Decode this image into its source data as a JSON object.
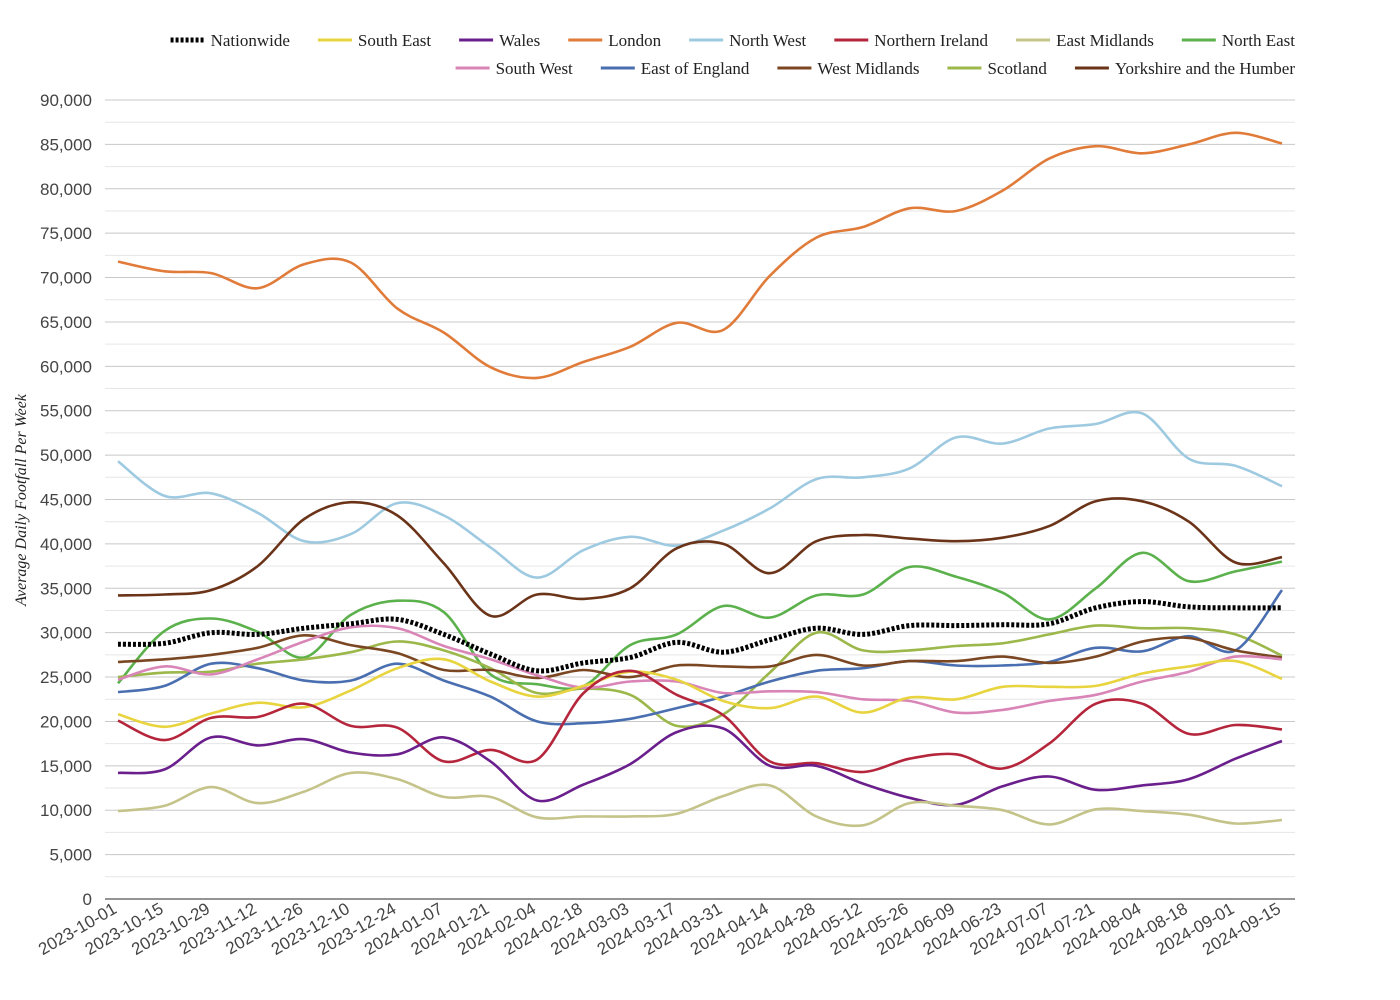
{
  "chart_data": {
    "type": "line",
    "ylabel": "Average Daily Footfall Per Week",
    "xlabel": "",
    "ylim": [
      0,
      90000
    ],
    "y_ticks": [
      0,
      5000,
      10000,
      15000,
      20000,
      25000,
      30000,
      35000,
      40000,
      45000,
      50000,
      55000,
      60000,
      65000,
      70000,
      75000,
      80000,
      85000,
      90000
    ],
    "y_tick_labels": [
      "0",
      "5,000",
      "10,000",
      "15,000",
      "20,000",
      "25,000",
      "30,000",
      "35,000",
      "40,000",
      "45,000",
      "50,000",
      "55,000",
      "60,000",
      "65,000",
      "70,000",
      "75,000",
      "80,000",
      "85,000",
      "90,000"
    ],
    "x_tick_labels": [
      "2023-10-01",
      "2023-10-15",
      "2023-10-29",
      "2023-11-12",
      "2023-11-26",
      "2023-12-10",
      "2023-12-24",
      "2024-01-07",
      "2024-01-21",
      "2024-02-04",
      "2024-02-18",
      "2024-03-03",
      "2024-03-17",
      "2024-03-31",
      "2024-04-14",
      "2024-04-28",
      "2024-05-12",
      "2024-05-26",
      "2024-06-09",
      "2024-06-23",
      "2024-07-07",
      "2024-07-21",
      "2024-08-04",
      "2024-08-18",
      "2024-09-01",
      "2024-09-15"
    ],
    "grid": true,
    "legend_position": "top",
    "x": [
      "2023-10-01",
      "2023-10-15",
      "2023-10-29",
      "2023-11-12",
      "2023-11-26",
      "2023-12-10",
      "2023-12-24",
      "2024-01-07",
      "2024-01-21",
      "2024-02-04",
      "2024-02-18",
      "2024-03-03",
      "2024-03-17",
      "2024-03-31",
      "2024-04-14",
      "2024-04-28",
      "2024-05-12",
      "2024-05-26",
      "2024-06-09",
      "2024-06-23",
      "2024-07-07",
      "2024-07-21",
      "2024-08-04",
      "2024-08-18",
      "2024-09-01",
      "2024-09-15"
    ],
    "series": [
      {
        "name": "London",
        "color": "#e07b39",
        "dashed": false,
        "values": [
          71800,
          70700,
          70500,
          68800,
          71500,
          71700,
          66500,
          63800,
          59900,
          58700,
          60500,
          62200,
          64900,
          64100,
          70200,
          74500,
          75700,
          77800,
          77500,
          79800,
          83400,
          84800,
          84000,
          85000,
          86300,
          85100
        ]
      },
      {
        "name": "North West",
        "color": "#9ecae1",
        "dashed": false,
        "values": [
          49300,
          45400,
          45700,
          43500,
          40300,
          41100,
          44600,
          43200,
          39600,
          36200,
          39300,
          40800,
          39800,
          41500,
          44000,
          47300,
          47500,
          48500,
          52000,
          51300,
          53000,
          53500,
          54700,
          49600,
          48800,
          46500
        ]
      },
      {
        "name": "Yorkshire and the Humber",
        "color": "#6b3318",
        "dashed": false,
        "values": [
          34200,
          34300,
          34800,
          37500,
          42800,
          44700,
          43200,
          37800,
          31900,
          34300,
          33800,
          35000,
          39500,
          40000,
          36700,
          40300,
          41000,
          40600,
          40300,
          40700,
          42000,
          44800,
          44800,
          42500,
          37900,
          38500
        ]
      },
      {
        "name": "North East",
        "color": "#5bb14b",
        "dashed": false,
        "values": [
          24300,
          30200,
          31600,
          30100,
          27200,
          32000,
          33600,
          32300,
          25300,
          24200,
          24000,
          28600,
          29800,
          33000,
          31700,
          34200,
          34300,
          37400,
          36300,
          34500,
          31500,
          35000,
          39000,
          35800,
          36900,
          38000
        ]
      },
      {
        "name": "Nationwide",
        "color": "#000000",
        "dashed": true,
        "values": [
          28700,
          28800,
          30000,
          29800,
          30500,
          31000,
          31500,
          29800,
          27600,
          25700,
          26600,
          27200,
          28900,
          27800,
          29200,
          30500,
          29800,
          30800,
          30800,
          30900,
          31000,
          32800,
          33500,
          32900,
          32800,
          32800
        ]
      },
      {
        "name": "Scotland",
        "color": "#9cb74a",
        "dashed": false,
        "values": [
          25000,
          25500,
          25600,
          26500,
          27000,
          27800,
          29000,
          28000,
          26000,
          23200,
          23700,
          23000,
          19500,
          20800,
          25500,
          30000,
          28000,
          28000,
          28500,
          28800,
          29800,
          30800,
          30500,
          30500,
          29800,
          27400
        ]
      },
      {
        "name": "East of England",
        "color": "#4a6fb0",
        "dashed": false,
        "values": [
          23300,
          24000,
          26500,
          26000,
          24600,
          24600,
          26500,
          24600,
          22800,
          20000,
          19800,
          20300,
          21500,
          22800,
          24500,
          25700,
          26000,
          26800,
          26300,
          26300,
          26700,
          28300,
          27900,
          29600,
          28000,
          34800
        ]
      },
      {
        "name": "West Midlands",
        "color": "#7b4722",
        "dashed": false,
        "values": [
          26700,
          27000,
          27500,
          28300,
          29700,
          28600,
          27700,
          25800,
          25800,
          24900,
          25800,
          25000,
          26300,
          26200,
          26200,
          27500,
          26300,
          26800,
          26800,
          27300,
          26600,
          27300,
          29000,
          29400,
          28000,
          27200
        ]
      },
      {
        "name": "South West",
        "color": "#d985b7",
        "dashed": false,
        "values": [
          24700,
          26200,
          25300,
          27000,
          29000,
          30600,
          30500,
          28500,
          27000,
          25200,
          23800,
          24500,
          24500,
          23200,
          23400,
          23300,
          22500,
          22300,
          21000,
          21300,
          22300,
          23000,
          24500,
          25600,
          27300,
          27000
        ]
      },
      {
        "name": "South East",
        "color": "#e8d43e",
        "dashed": false,
        "values": [
          20800,
          19400,
          20900,
          22100,
          21600,
          23500,
          26000,
          27000,
          24500,
          22800,
          24000,
          25600,
          24700,
          22300,
          21500,
          22800,
          21000,
          22700,
          22500,
          23900,
          23900,
          24000,
          25400,
          26200,
          26800,
          24800
        ]
      },
      {
        "name": "Northern Ireland",
        "color": "#b5263c",
        "dashed": false,
        "values": [
          20100,
          17900,
          20400,
          20500,
          22000,
          19500,
          19300,
          15500,
          16800,
          15700,
          23200,
          25700,
          23000,
          20700,
          15500,
          15300,
          14300,
          15800,
          16300,
          14700,
          17500,
          22000,
          22000,
          18600,
          19600,
          19100
        ]
      },
      {
        "name": "Wales",
        "color": "#6a1f8c",
        "dashed": false,
        "values": [
          14200,
          14600,
          18200,
          17300,
          18000,
          16500,
          16300,
          18200,
          15500,
          11100,
          12900,
          15200,
          18800,
          19200,
          15000,
          15000,
          13000,
          11400,
          10600,
          12700,
          13800,
          12300,
          12800,
          13500,
          15800,
          17800
        ]
      },
      {
        "name": "East Midlands",
        "color": "#c4c48a",
        "dashed": false,
        "values": [
          9900,
          10500,
          12600,
          10800,
          12100,
          14200,
          13500,
          11500,
          11500,
          9200,
          9300,
          9300,
          9600,
          11600,
          12800,
          9300,
          8300,
          10800,
          10500,
          10000,
          8400,
          10100,
          9900,
          9500,
          8500,
          8900
        ]
      }
    ]
  },
  "legend": [
    {
      "name": "Nationwide",
      "color": "#000000",
      "dashed": true
    },
    {
      "name": "South East",
      "color": "#e8d43e",
      "dashed": false
    },
    {
      "name": "Wales",
      "color": "#6a1f8c",
      "dashed": false
    },
    {
      "name": "London",
      "color": "#e07b39",
      "dashed": false
    },
    {
      "name": "North West",
      "color": "#9ecae1",
      "dashed": false
    },
    {
      "name": "Northern Ireland",
      "color": "#b5263c",
      "dashed": false
    },
    {
      "name": "East Midlands",
      "color": "#c4c48a",
      "dashed": false
    },
    {
      "name": "North East",
      "color": "#5bb14b",
      "dashed": false
    },
    {
      "name": "South West",
      "color": "#d985b7",
      "dashed": false
    },
    {
      "name": "East of England",
      "color": "#4a6fb0",
      "dashed": false
    },
    {
      "name": "West Midlands",
      "color": "#7b4722",
      "dashed": false
    },
    {
      "name": "Scotland",
      "color": "#9cb74a",
      "dashed": false
    },
    {
      "name": "Yorkshire and the Humber",
      "color": "#6b3318",
      "dashed": false
    }
  ]
}
